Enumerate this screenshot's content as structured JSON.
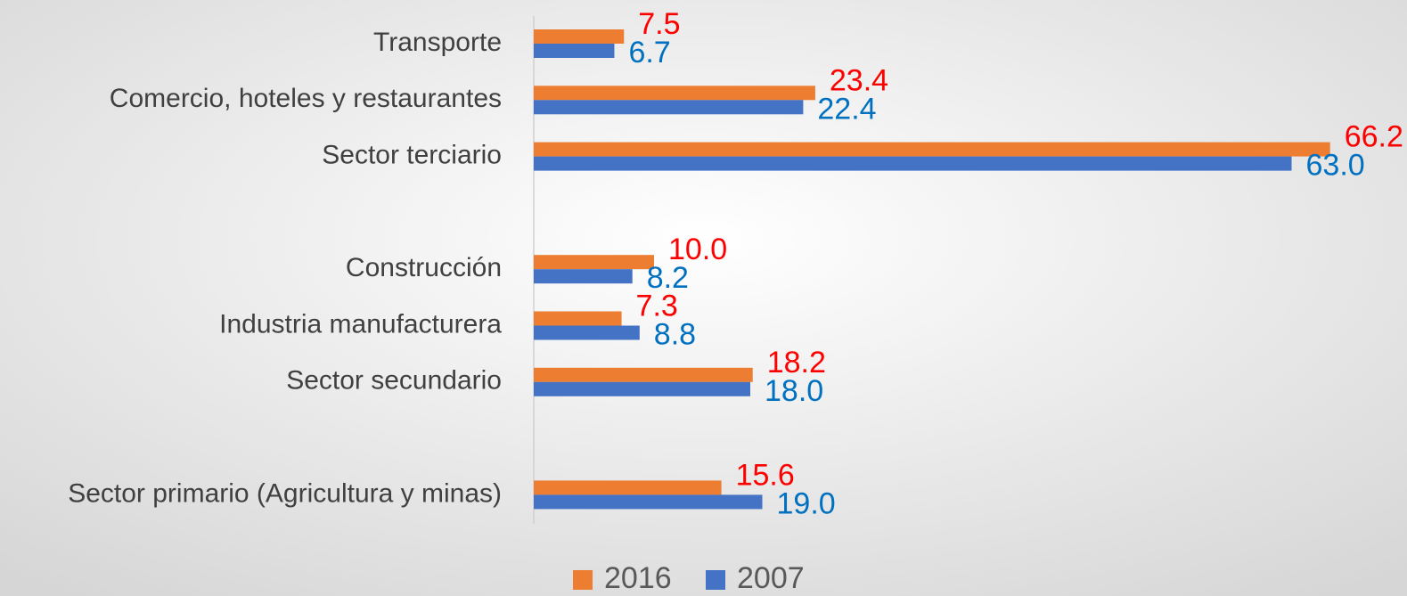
{
  "chart_data": {
    "type": "hbar",
    "categories": [
      "Transporte",
      "Comercio, hoteles y restaurantes",
      "Sector terciario",
      null,
      "Construcción",
      "Industria manufacturera",
      "Sector secundario",
      null,
      "Sector primario (Agricultura y minas)"
    ],
    "series": [
      {
        "name": "2016",
        "color": "#ed7d31",
        "label_color": "#ff0000",
        "values": [
          7.5,
          23.4,
          66.2,
          null,
          10.0,
          7.3,
          18.2,
          null,
          15.6
        ],
        "value_labels": [
          "7.5",
          "23.4",
          "66.2",
          null,
          "10.0",
          "7.3",
          "18.2",
          null,
          "15.6"
        ]
      },
      {
        "name": "2007",
        "color": "#4472c4",
        "label_color": "#0070c0",
        "values": [
          6.7,
          22.4,
          63.0,
          null,
          8.2,
          8.8,
          18.0,
          null,
          19.0
        ],
        "value_labels": [
          "6.7",
          "22.4",
          "63.0",
          null,
          "8.2",
          "8.8",
          "18.0",
          null,
          "19.0"
        ]
      }
    ],
    "xlim": [
      0,
      70
    ]
  }
}
